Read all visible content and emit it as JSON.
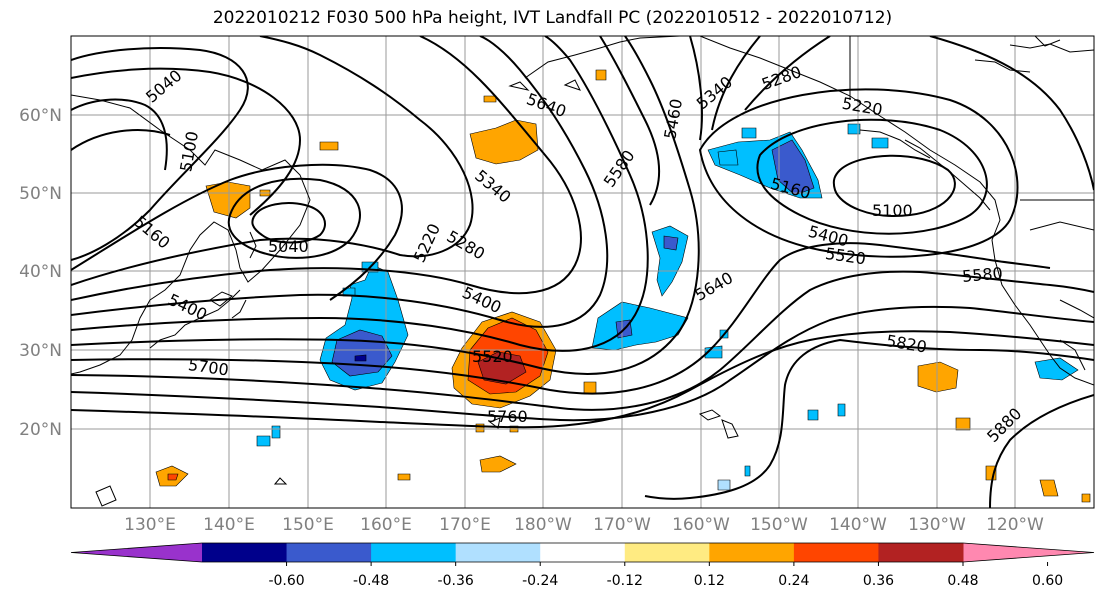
{
  "title": "2022010212 F030 500 hPa height, IVT Landfall PC (2022010512 - 2022010712)",
  "lat_labels": [
    "60°N",
    "50°N",
    "40°N",
    "30°N",
    "20°N"
  ],
  "lon_labels": [
    "130°E",
    "140°E",
    "150°E",
    "160°E",
    "170°E",
    "180°W",
    "170°W",
    "160°W",
    "150°W",
    "140°W",
    "130°W",
    "120°W"
  ],
  "colorbar": {
    "colors": [
      "#9932cc",
      "#00008b",
      "#3a5acd",
      "#00bfff",
      "#b0e0ff",
      "#ffffff",
      "#ffeb82",
      "#ffa500",
      "#ff4500",
      "#b22222",
      "#ff88b0"
    ],
    "tick_labels": [
      "-0.60",
      "-0.48",
      "-0.36",
      "-0.24",
      "-0.12",
      "0.12",
      "0.24",
      "0.36",
      "0.48",
      "0.60"
    ]
  },
  "contour_labels": [
    "5040",
    "5100",
    "5160",
    "5400",
    "5700",
    "5040",
    "5220",
    "5280",
    "5340",
    "5400",
    "5520",
    "5760",
    "5640",
    "5580",
    "5460",
    "5340",
    "5280",
    "5220",
    "5160",
    "5100",
    "5400",
    "5520",
    "5580",
    "5640",
    "5820",
    "5880"
  ]
}
